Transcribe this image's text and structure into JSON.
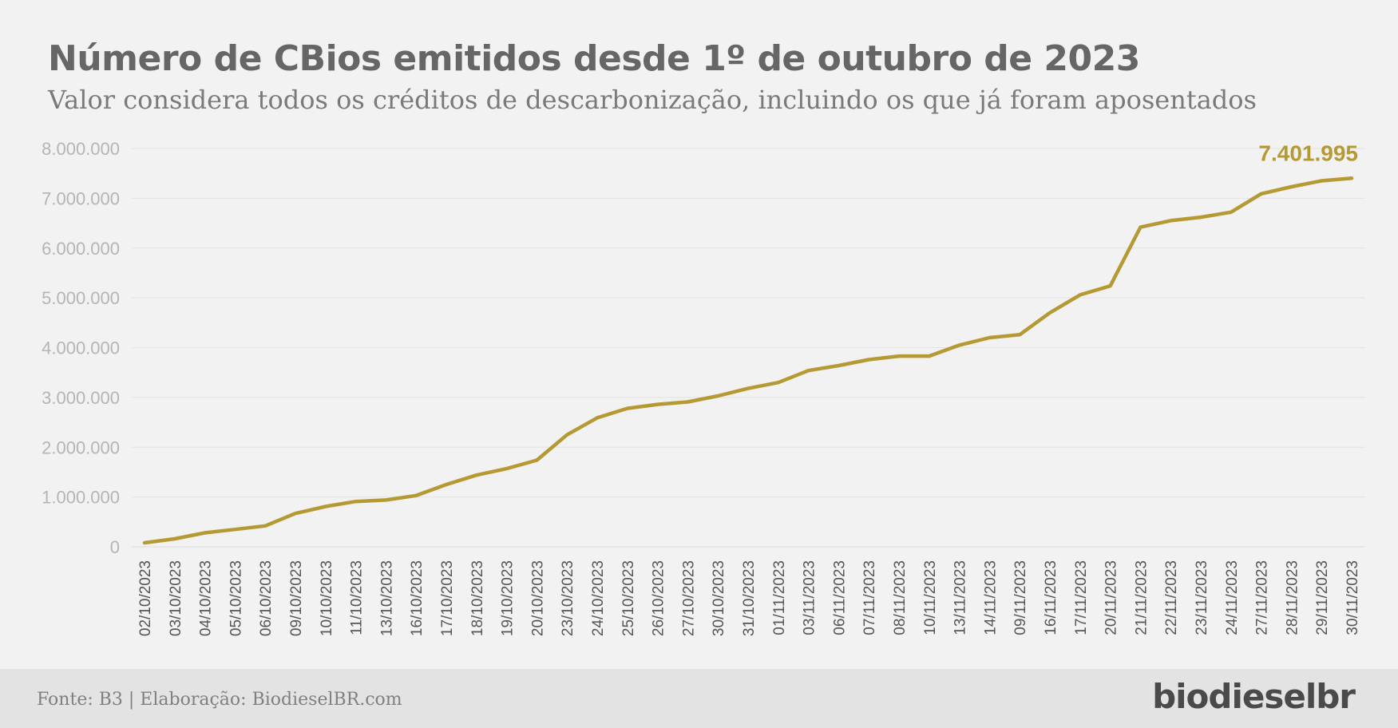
{
  "chart_data": {
    "type": "line",
    "title": "Número de CBios emitidos desde 1º de outubro de 2023",
    "subtitle": "Valor considera todos os créditos de descarbonização, incluindo os que já foram aposentados",
    "xlabel": "",
    "ylabel": "",
    "ylim": [
      0,
      8000000
    ],
    "yticks": [
      0,
      1000000,
      2000000,
      3000000,
      4000000,
      5000000,
      6000000,
      7000000,
      8000000
    ],
    "ytick_labels": [
      "0",
      "1.000.000",
      "2.000.000",
      "3.000.000",
      "4.000.000",
      "5.000.000",
      "6.000.000",
      "7.000.000",
      "8.000.000"
    ],
    "grid": true,
    "legend": "none",
    "line_color": "#b59a34",
    "categories": [
      "02/10/2023",
      "03/10/2023",
      "04/10/2023",
      "05/10/2023",
      "06/10/2023",
      "09/10/2023",
      "10/10/2023",
      "11/10/2023",
      "13/10/2023",
      "16/10/2023",
      "17/10/2023",
      "18/10/2023",
      "19/10/2023",
      "20/10/2023",
      "23/10/2023",
      "24/10/2023",
      "25/10/2023",
      "26/10/2023",
      "27/10/2023",
      "30/10/2023",
      "31/10/2023",
      "01/11/2023",
      "03/11/2023",
      "06/11/2023",
      "07/11/2023",
      "08/11/2023",
      "10/11/2023",
      "13/11/2023",
      "14/11/2023",
      "09/11/2023",
      "16/11/2023",
      "17/11/2023",
      "20/11/2023",
      "21/11/2023",
      "22/11/2023",
      "23/11/2023",
      "24/11/2023",
      "27/11/2023",
      "28/11/2023",
      "29/11/2023",
      "30/11/2023"
    ],
    "values": [
      80000,
      160000,
      280000,
      350000,
      420000,
      670000,
      810000,
      910000,
      940000,
      1030000,
      1250000,
      1440000,
      1570000,
      1740000,
      2250000,
      2590000,
      2780000,
      2860000,
      2910000,
      3030000,
      3180000,
      3300000,
      3540000,
      3640000,
      3760000,
      3830000,
      3830000,
      4050000,
      4200000,
      4260000,
      4700000,
      5060000,
      5240000,
      6420000,
      6550000,
      6620000,
      6720000,
      7090000,
      7230000,
      7350000,
      7401995
    ],
    "annotations": [
      {
        "index": 40,
        "label": "7.401.995"
      }
    ]
  },
  "footer": {
    "source": "Fonte: B3 | Elaboração: BiodieselBR.com",
    "logo_text": "biodieselbr"
  }
}
